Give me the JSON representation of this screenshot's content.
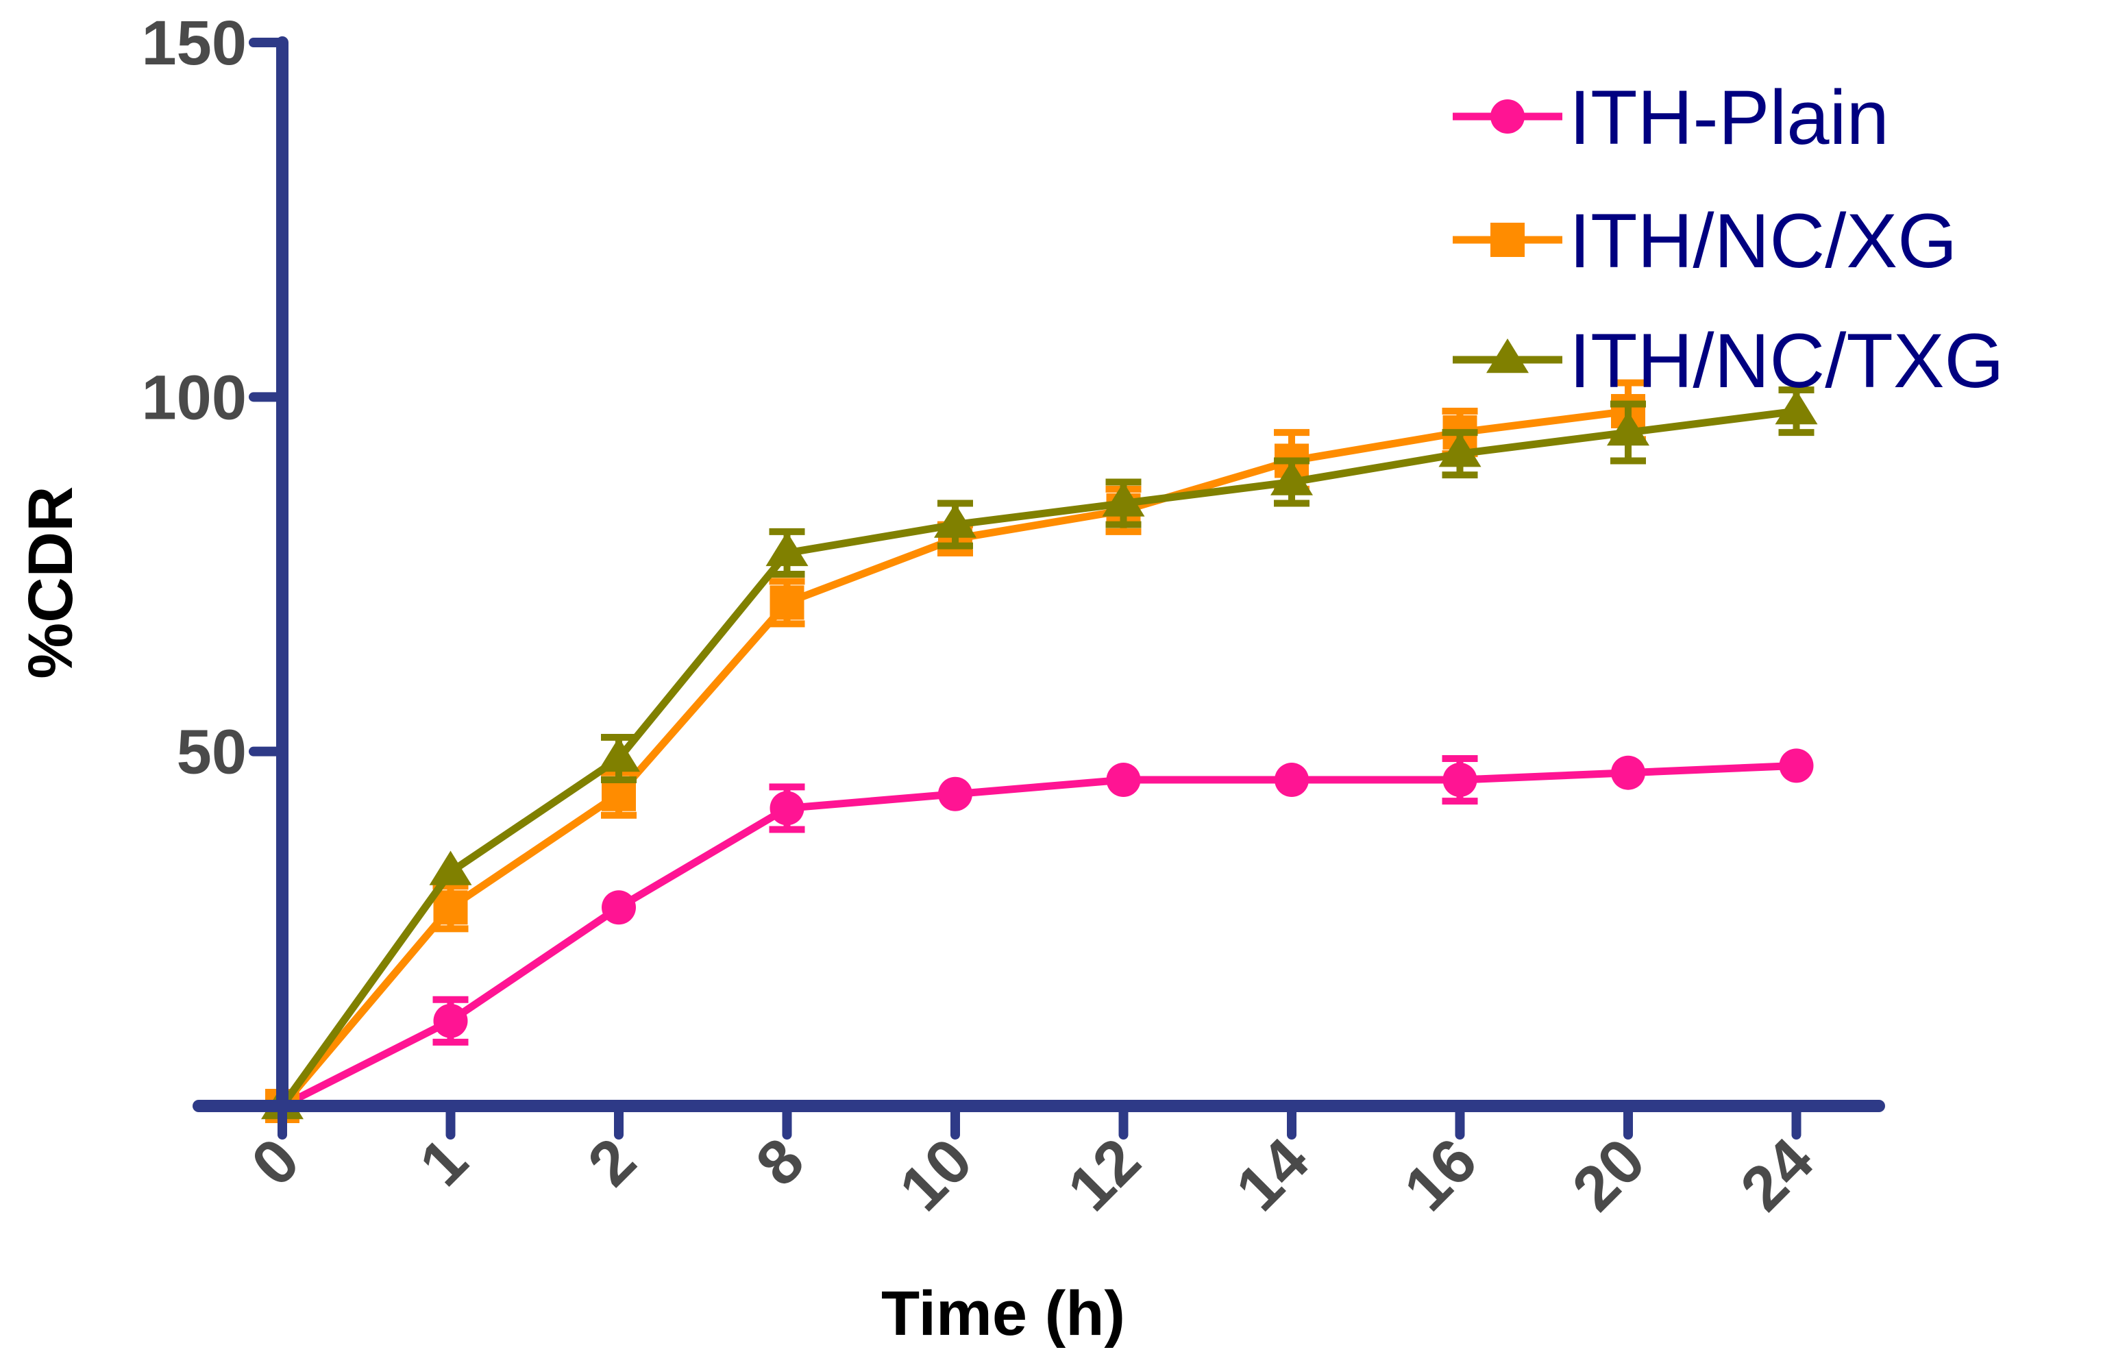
{
  "chart_data": {
    "type": "line",
    "title": "",
    "xlabel": "Time (h)",
    "ylabel": "%CDR",
    "categories": [
      "0",
      "1",
      "2",
      "8",
      "10",
      "12",
      "14",
      "16",
      "20",
      "24"
    ],
    "ylim": [
      0,
      150
    ],
    "yticks": [
      "50",
      "100",
      "150"
    ],
    "grid": false,
    "legend_position": "top-right",
    "series": [
      {
        "name": "ITH-Plain",
        "color": "#ff1493",
        "marker": "circle",
        "values": [
          0,
          12,
          28,
          42,
          44,
          46,
          46,
          46,
          47,
          48
        ],
        "errors": [
          0,
          3,
          0,
          3,
          0,
          0,
          0,
          3,
          0,
          0
        ]
      },
      {
        "name": "ITH/NC/XG",
        "color": "#ff8c00",
        "marker": "square",
        "values": [
          0,
          28,
          44,
          71,
          80,
          84,
          91,
          95,
          98,
          null
        ],
        "errors": [
          0,
          3,
          3,
          3,
          2,
          3,
          4,
          3,
          4,
          0
        ]
      },
      {
        "name": "ITH/NC/TXG",
        "color": "#808000",
        "marker": "triangle",
        "values": [
          0,
          33,
          49,
          78,
          82,
          85,
          88,
          92,
          95,
          98
        ],
        "errors": [
          0,
          0,
          3,
          3,
          3,
          3,
          3,
          3,
          4,
          3
        ]
      }
    ],
    "axis_color": "#2e3a87"
  }
}
